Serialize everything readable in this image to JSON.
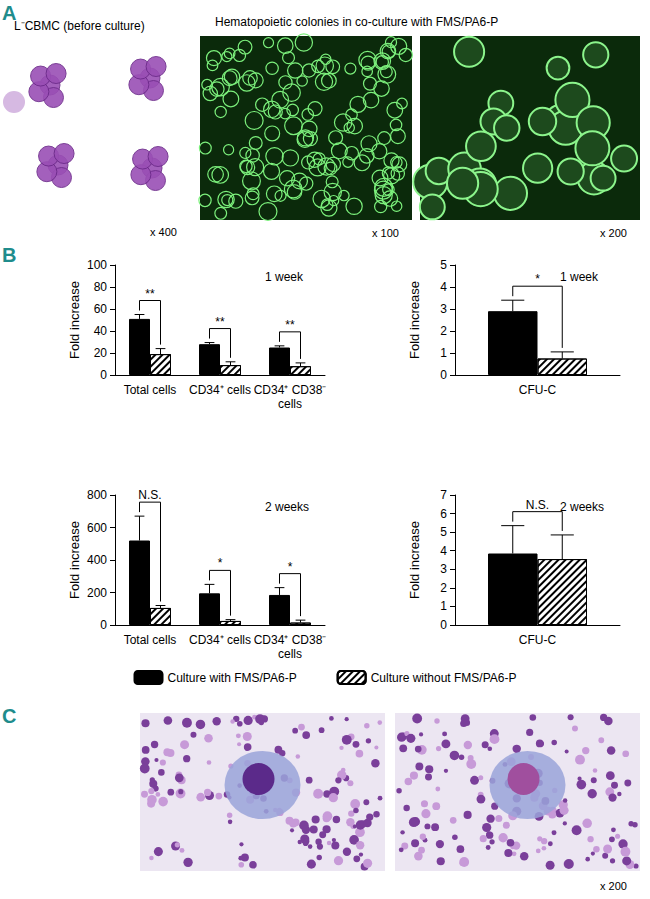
{
  "panel_a": {
    "label": "A",
    "left_caption": "L⁻CBMC (before culture)",
    "left_magnification": "x 400",
    "right_caption": "Hematopoietic colonies in co-culture with FMS/PA6-P",
    "right_magnifications": [
      "x 100",
      "x 200"
    ]
  },
  "panel_b": {
    "label": "B"
  },
  "panel_c": {
    "label": "C",
    "magnification": "x 200"
  },
  "chart_data": [
    {
      "type": "bar",
      "annotation": "1 week",
      "y_label": "Fold increase",
      "categories": [
        "Total cells",
        "CD34⁺ cells",
        "CD34⁺ CD38⁻\ncells"
      ],
      "ylim": [
        0,
        100
      ],
      "yticks": [
        0,
        20,
        40,
        60,
        80,
        100
      ],
      "grid": false,
      "legend": "bottom",
      "series": [
        {
          "name": "Culture with FMS/PA6-P",
          "color": "#000000",
          "values": [
            51,
            28,
            25
          ],
          "errors": [
            4,
            1.5,
            1.5
          ]
        },
        {
          "name": "Culture without FMS/PA6-P",
          "color": "#000000",
          "values": [
            19,
            9,
            8
          ],
          "errors": [
            5,
            3,
            3
          ]
        }
      ],
      "significance": [
        "**",
        "**",
        "**"
      ]
    },
    {
      "type": "bar",
      "annotation": "1 week",
      "y_label": "Fold increase",
      "categories": [
        "CFU-C"
      ],
      "ylim": [
        0,
        5
      ],
      "yticks": [
        0,
        1,
        2,
        3,
        4,
        5
      ],
      "grid": false,
      "legend": "bottom",
      "series": [
        {
          "name": "Culture with FMS/PA6-P",
          "color": "#000000",
          "values": [
            2.9
          ],
          "errors": [
            0.5
          ]
        },
        {
          "name": "Culture without FMS/PA6-P",
          "color": "#000000",
          "values": [
            0.75
          ],
          "errors": [
            0.3
          ]
        }
      ],
      "significance": [
        "*"
      ]
    },
    {
      "type": "bar",
      "annotation": "2 weeks",
      "y_label": "Fold increase",
      "categories": [
        "Total cells",
        "CD34⁺ cells",
        "CD34⁺ CD38⁻\ncells"
      ],
      "ylim": [
        0,
        800
      ],
      "yticks": [
        0,
        200,
        400,
        600,
        800
      ],
      "grid": false,
      "legend": "bottom",
      "series": [
        {
          "name": "Culture with FMS/PA6-P",
          "color": "#000000",
          "values": [
            520,
            195,
            185
          ],
          "errors": [
            150,
            55,
            45
          ]
        },
        {
          "name": "Culture without FMS/PA6-P",
          "color": "#000000",
          "values": [
            105,
            25,
            15
          ],
          "errors": [
            15,
            8,
            15
          ]
        }
      ],
      "significance": [
        "N.S.",
        "*",
        "*"
      ]
    },
    {
      "type": "bar",
      "annotation": "2 weeks",
      "y_label": "Fold increase",
      "categories": [
        "CFU-C"
      ],
      "ylim": [
        0,
        7
      ],
      "yticks": [
        0,
        1,
        2,
        3,
        4,
        5,
        6,
        7
      ],
      "grid": false,
      "legend": "bottom",
      "series": [
        {
          "name": "Culture with FMS/PA6-P",
          "color": "#000000",
          "values": [
            3.85
          ],
          "errors": [
            1.5
          ]
        },
        {
          "name": "Culture without FMS/PA6-P",
          "color": "#000000",
          "values": [
            3.55
          ],
          "errors": [
            1.3
          ]
        }
      ],
      "significance": [
        "N.S."
      ]
    }
  ]
}
